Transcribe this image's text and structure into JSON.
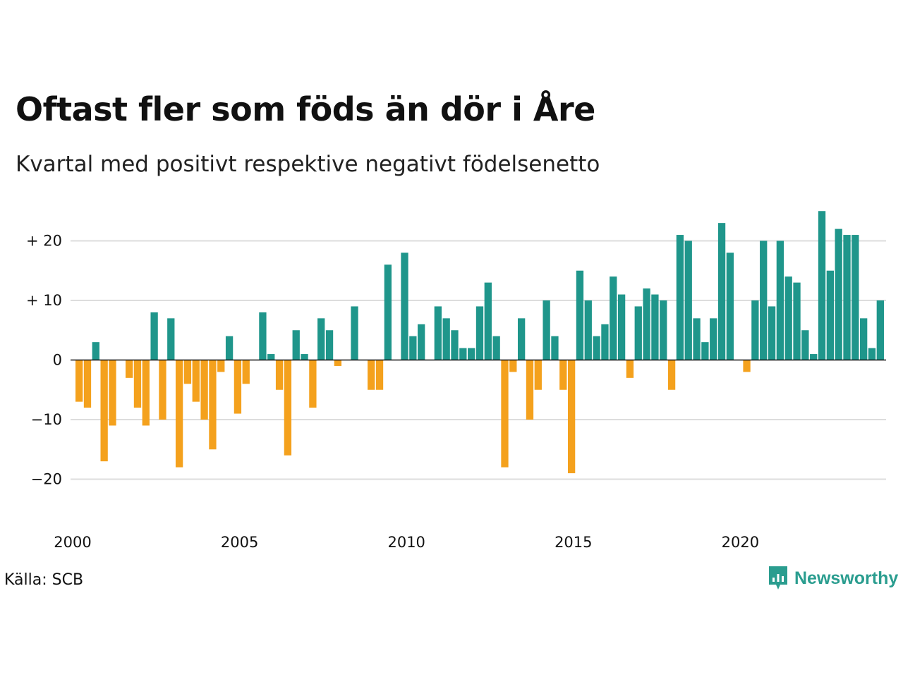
{
  "header": {
    "title": "Oftast fler som föds än dör i Åre",
    "subtitle": "Kvartal med positivt respektive negativt födelsenetto"
  },
  "footer": {
    "source": "Källa: SCB",
    "brand": "Newsworthy"
  },
  "colors": {
    "positive": "#1f968b",
    "negative": "#f4a11d",
    "brand": "#2a9d8f",
    "grid": "#dddddd"
  },
  "icons": {
    "brand_logo": "newsworthy-logo-icon"
  },
  "chart_data": {
    "type": "bar",
    "title": "Oftast fler som föds än dör i Åre",
    "subtitle": "Kvartal med positivt respektive negativt födelsenetto",
    "xlabel": "",
    "ylabel": "",
    "x_start": 2000,
    "periods_per_year": 4,
    "xticks": [
      "2000",
      "2005",
      "2010",
      "2015",
      "2020"
    ],
    "yticks": [
      {
        "value": 20,
        "label": "+ 20"
      },
      {
        "value": 10,
        "label": "+ 10"
      },
      {
        "value": 0,
        "label": "0"
      },
      {
        "value": -10,
        "label": "−10"
      },
      {
        "value": -20,
        "label": "−20"
      }
    ],
    "ylim": [
      -27,
      27
    ],
    "grid": true,
    "values": [
      -7,
      -8,
      3,
      -17,
      -11,
      0,
      -3,
      -8,
      -11,
      8,
      -10,
      7,
      -18,
      -4,
      -7,
      -10,
      -15,
      -2,
      4,
      -9,
      -4,
      0,
      8,
      1,
      -5,
      -16,
      5,
      1,
      -8,
      7,
      5,
      -1,
      0,
      9,
      0,
      -5,
      -5,
      16,
      0,
      18,
      4,
      6,
      0,
      9,
      7,
      5,
      2,
      2,
      9,
      13,
      4,
      -18,
      -2,
      7,
      -10,
      -5,
      10,
      4,
      -5,
      -19,
      15,
      10,
      4,
      6,
      14,
      11,
      -3,
      9,
      12,
      11,
      10,
      -5,
      21,
      20,
      7,
      3,
      7,
      23,
      18,
      0,
      -2,
      10,
      20,
      9,
      20,
      14,
      13,
      5,
      1,
      25,
      15,
      22,
      21,
      21,
      7,
      2,
      10
    ]
  }
}
